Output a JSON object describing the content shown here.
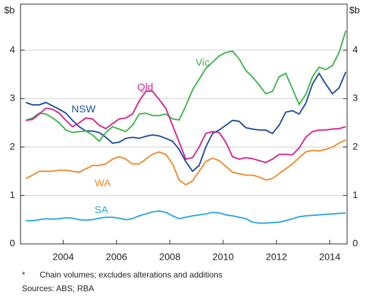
{
  "chart_data": {
    "type": "line",
    "y_unit": "$b",
    "xlim": [
      2002.4,
      2014.65
    ],
    "ylim": [
      0,
      4.95
    ],
    "xticks": [
      2004,
      2006,
      2008,
      2010,
      2012,
      2014
    ],
    "yticks": [
      0,
      1,
      2,
      3,
      4
    ],
    "grid": true,
    "x": [
      2002.6,
      2002.85,
      2003.1,
      2003.35,
      2003.6,
      2003.85,
      2004.1,
      2004.35,
      2004.6,
      2004.85,
      2005.1,
      2005.35,
      2005.6,
      2005.85,
      2006.1,
      2006.35,
      2006.6,
      2006.85,
      2007.1,
      2007.35,
      2007.6,
      2007.85,
      2008.1,
      2008.35,
      2008.6,
      2008.85,
      2009.1,
      2009.35,
      2009.6,
      2009.85,
      2010.1,
      2010.35,
      2010.6,
      2010.85,
      2011.1,
      2011.35,
      2011.6,
      2011.85,
      2012.1,
      2012.35,
      2012.6,
      2012.85,
      2013.1,
      2013.35,
      2013.6,
      2013.85,
      2014.1,
      2014.35,
      2014.6
    ],
    "series": [
      {
        "name": "NSW",
        "color": "#1f4e9c",
        "values": [
          2.92,
          2.87,
          2.87,
          2.92,
          2.85,
          2.78,
          2.7,
          2.55,
          2.42,
          2.33,
          2.33,
          2.3,
          2.2,
          2.08,
          2.1,
          2.18,
          2.2,
          2.18,
          2.22,
          2.25,
          2.23,
          2.18,
          2.12,
          1.95,
          1.7,
          1.5,
          1.62,
          2.0,
          2.28,
          2.35,
          2.45,
          2.55,
          2.53,
          2.4,
          2.37,
          2.35,
          2.35,
          2.28,
          2.45,
          2.72,
          2.75,
          2.68,
          2.9,
          3.3,
          3.52,
          3.3,
          3.1,
          3.22,
          3.55
        ]
      },
      {
        "name": "Vic",
        "color": "#3cb44a",
        "values": [
          2.55,
          2.6,
          2.7,
          2.68,
          2.6,
          2.5,
          2.35,
          2.3,
          2.32,
          2.33,
          2.25,
          2.12,
          2.3,
          2.42,
          2.37,
          2.32,
          2.45,
          2.68,
          2.7,
          2.65,
          2.65,
          2.68,
          2.58,
          2.56,
          2.85,
          3.18,
          3.4,
          3.62,
          3.75,
          3.88,
          3.95,
          3.98,
          3.82,
          3.58,
          3.45,
          3.28,
          3.1,
          3.15,
          3.45,
          3.52,
          3.2,
          2.88,
          3.08,
          3.45,
          3.65,
          3.6,
          3.68,
          3.95,
          4.4
        ]
      },
      {
        "name": "Qld",
        "color": "#d6258c",
        "values": [
          2.55,
          2.57,
          2.68,
          2.8,
          2.78,
          2.7,
          2.55,
          2.42,
          2.5,
          2.6,
          2.58,
          2.45,
          2.38,
          2.48,
          2.58,
          2.6,
          2.68,
          2.95,
          3.15,
          3.15,
          2.98,
          2.8,
          2.45,
          2.1,
          1.75,
          1.78,
          2.0,
          2.28,
          2.32,
          2.3,
          2.1,
          1.8,
          1.75,
          1.78,
          1.76,
          1.72,
          1.68,
          1.75,
          1.85,
          1.85,
          1.84,
          1.98,
          2.2,
          2.32,
          2.35,
          2.35,
          2.37,
          2.38,
          2.42
        ]
      },
      {
        "name": "WA",
        "color": "#f08a2c",
        "values": [
          1.35,
          1.42,
          1.5,
          1.5,
          1.5,
          1.52,
          1.52,
          1.5,
          1.48,
          1.55,
          1.62,
          1.62,
          1.65,
          1.75,
          1.8,
          1.75,
          1.65,
          1.65,
          1.75,
          1.85,
          1.9,
          1.85,
          1.65,
          1.32,
          1.22,
          1.3,
          1.5,
          1.7,
          1.77,
          1.72,
          1.6,
          1.48,
          1.45,
          1.42,
          1.42,
          1.38,
          1.32,
          1.35,
          1.45,
          1.55,
          1.65,
          1.78,
          1.9,
          1.93,
          1.92,
          1.95,
          2.0,
          2.08,
          2.15
        ]
      },
      {
        "name": "SA",
        "color": "#2ba8d8",
        "values": [
          0.48,
          0.48,
          0.5,
          0.52,
          0.51,
          0.52,
          0.54,
          0.53,
          0.5,
          0.49,
          0.5,
          0.53,
          0.55,
          0.55,
          0.53,
          0.5,
          0.52,
          0.58,
          0.62,
          0.66,
          0.68,
          0.65,
          0.58,
          0.52,
          0.55,
          0.58,
          0.6,
          0.62,
          0.65,
          0.64,
          0.6,
          0.58,
          0.55,
          0.52,
          0.45,
          0.43,
          0.43,
          0.44,
          0.45,
          0.48,
          0.52,
          0.56,
          0.58,
          0.59,
          0.6,
          0.61,
          0.62,
          0.63,
          0.64
        ]
      }
    ],
    "notes": [
      "*",
      "Chain volumes; excludes alterations and additions",
      "Sources:  ABS; RBA"
    ]
  }
}
